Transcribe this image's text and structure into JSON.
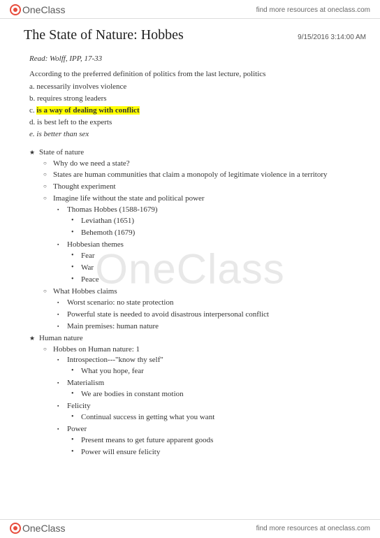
{
  "brand": {
    "name": "OneClass",
    "resource_text": "find more resources at oneclass.com"
  },
  "watermark": "OneClass",
  "doc": {
    "title": "The State of Nature: Hobbes",
    "timestamp": "9/15/2016 3:14:00 AM",
    "reading": "Read: Wolff, IPP, 17-33",
    "intro": "According to the preferred definition of politics from the last lecture, politics",
    "options": {
      "a": {
        "label": "a.",
        "text": "necessarily involves violence"
      },
      "b": {
        "label": "b.",
        "text": "requires strong leaders"
      },
      "c": {
        "label": "c.",
        "text": "is a way of dealing with conflict"
      },
      "d": {
        "label": "d.",
        "text": "is best left to the experts"
      },
      "e": {
        "label": "e.",
        "text": "is better than sex"
      }
    },
    "outline": {
      "s1": {
        "title": "State of nature",
        "i1": "Why do we need a state?",
        "i2": "States are human communities that claim a monopoly of legitimate violence in a territory",
        "i3": "Thought experiment",
        "i4": {
          "t": "Imagine life without the state and political power",
          "a": {
            "t": "Thomas Hobbes (1588-1679)",
            "x": "Leviathan (1651)",
            "y": "Behemoth (1679)"
          },
          "b": {
            "t": "Hobbesian themes",
            "x": "Fear",
            "y": "War",
            "z": "Peace"
          }
        },
        "i5": {
          "t": "What Hobbes claims",
          "a": "Worst scenario: no state protection",
          "b": "Powerful state is needed to avoid disastrous interpersonal conflict",
          "c": "Main premises: human nature"
        }
      },
      "s2": {
        "title": "Human nature",
        "i1": {
          "t": "Hobbes on Human nature: 1",
          "a": {
            "t": "Introspection---\"know thy self\"",
            "x": "What you hope, fear"
          },
          "b": {
            "t": "Materialism",
            "x": "We are bodies in constant motion"
          },
          "c": {
            "t": "Felicity",
            "x": "Continual success in getting what you want"
          },
          "d": {
            "t": "Power",
            "x": "Present means to get future apparent goods",
            "y": "Power will ensure felicity"
          }
        }
      }
    }
  }
}
